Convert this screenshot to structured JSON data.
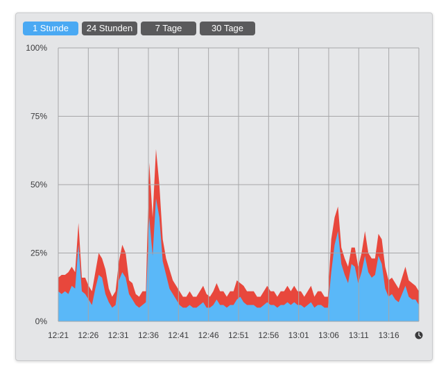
{
  "tabs": [
    {
      "label": "1 Stunde",
      "active": true
    },
    {
      "label": "24 Stunden",
      "active": false
    },
    {
      "label": "7 Tage",
      "active": false
    },
    {
      "label": "30 Tage",
      "active": false
    }
  ],
  "icons": {
    "clock": "clock-icon"
  },
  "colors": {
    "user": "#5ab8f8",
    "system": "#e8473c",
    "grid": "#a6a6a8",
    "active_tab": "#4aa9f3",
    "inactive_tab": "#5a5a5c"
  },
  "chart_data": {
    "type": "area",
    "stacked": true,
    "y_ticks": [
      "0%",
      "25%",
      "50%",
      "75%",
      "100%"
    ],
    "ylim": [
      0,
      100
    ],
    "x_ticks": [
      "12:21",
      "12:26",
      "12:31",
      "12:36",
      "12:41",
      "12:46",
      "12:51",
      "12:56",
      "13:01",
      "13:06",
      "13:11",
      "13:16"
    ],
    "grid": true,
    "series": [
      {
        "color": "#5ab8f8",
        "values": [
          11,
          10,
          11,
          10,
          13,
          12,
          28,
          11,
          10,
          8,
          6,
          12,
          17,
          16,
          10,
          7,
          5,
          6,
          15,
          18,
          16,
          10,
          8,
          6,
          5,
          6,
          7,
          38,
          24,
          45,
          38,
          22,
          17,
          12,
          10,
          8,
          6,
          5,
          5,
          6,
          5,
          5,
          6,
          7,
          5,
          5,
          6,
          8,
          6,
          6,
          5,
          6,
          6,
          8,
          9,
          7,
          6,
          6,
          6,
          5,
          5,
          6,
          7,
          6,
          6,
          5,
          6,
          6,
          7,
          6,
          7,
          6,
          6,
          5,
          6,
          7,
          5,
          6,
          6,
          5,
          5,
          18,
          28,
          33,
          21,
          17,
          14,
          21,
          20,
          14,
          18,
          24,
          18,
          16,
          17,
          24,
          21,
          12,
          9,
          10,
          8,
          7,
          10,
          13,
          9,
          8,
          8,
          6
        ]
      },
      {
        "color": "#e8473c",
        "values": [
          5,
          7,
          6,
          8,
          7,
          6,
          8,
          5,
          6,
          5,
          5,
          6,
          8,
          7,
          9,
          5,
          4,
          5,
          7,
          10,
          9,
          5,
          6,
          4,
          4,
          5,
          4,
          20,
          14,
          18,
          12,
          8,
          6,
          7,
          5,
          5,
          5,
          4,
          4,
          5,
          4,
          4,
          5,
          6,
          5,
          4,
          5,
          6,
          5,
          5,
          4,
          5,
          5,
          7,
          5,
          6,
          5,
          5,
          5,
          4,
          4,
          5,
          6,
          5,
          5,
          4,
          5,
          5,
          6,
          5,
          6,
          5,
          5,
          4,
          5,
          6,
          4,
          5,
          5,
          4,
          4,
          12,
          10,
          9,
          6,
          6,
          6,
          6,
          7,
          6,
          7,
          9,
          7,
          7,
          6,
          8,
          9,
          8,
          6,
          6,
          6,
          5,
          6,
          7,
          6,
          6,
          5,
          5
        ]
      }
    ]
  }
}
